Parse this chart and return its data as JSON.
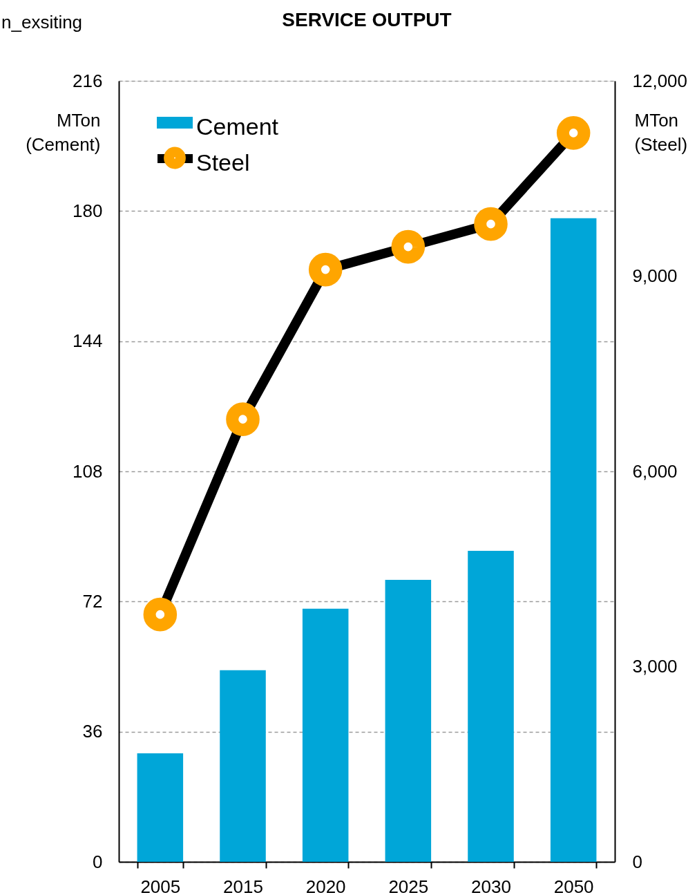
{
  "chart_data": {
    "type": "bar",
    "title": "SERVICE OUTPUT",
    "ylabel": "MTon (Cement)",
    "y2label": "MTon (Steel)",
    "annotations": [
      "n_exsiting"
    ],
    "categories": [
      "2005",
      "2015",
      "2020",
      "2025",
      "2030",
      "2050"
    ],
    "series": [
      {
        "name": "Cement",
        "color": "#00a6d8",
        "values": [
          30,
          53,
          70,
          78,
          86,
          178
        ]
      },
      {
        "name": "Steel",
        "type": "line",
        "axis": "y2",
        "color": "#000000",
        "values": [
          3800,
          6800,
          9100,
          9450,
          9800,
          11200
        ]
      }
    ],
    "ylim": [
      0,
      216
    ],
    "yticks": [
      0,
      36,
      72,
      108,
      144,
      180,
      216
    ],
    "y2lim": [
      0,
      12000
    ],
    "y2ticks": [
      0,
      {
        "value": 3000,
        "label": "3,000"
      },
      {
        "value": 6000,
        "label": "6,000"
      },
      {
        "value": 9000,
        "label": "9,000"
      },
      {
        "value": 12000,
        "label": "12,000"
      }
    ],
    "grid": "y",
    "legend": "top left",
    "marker": "circle"
  }
}
